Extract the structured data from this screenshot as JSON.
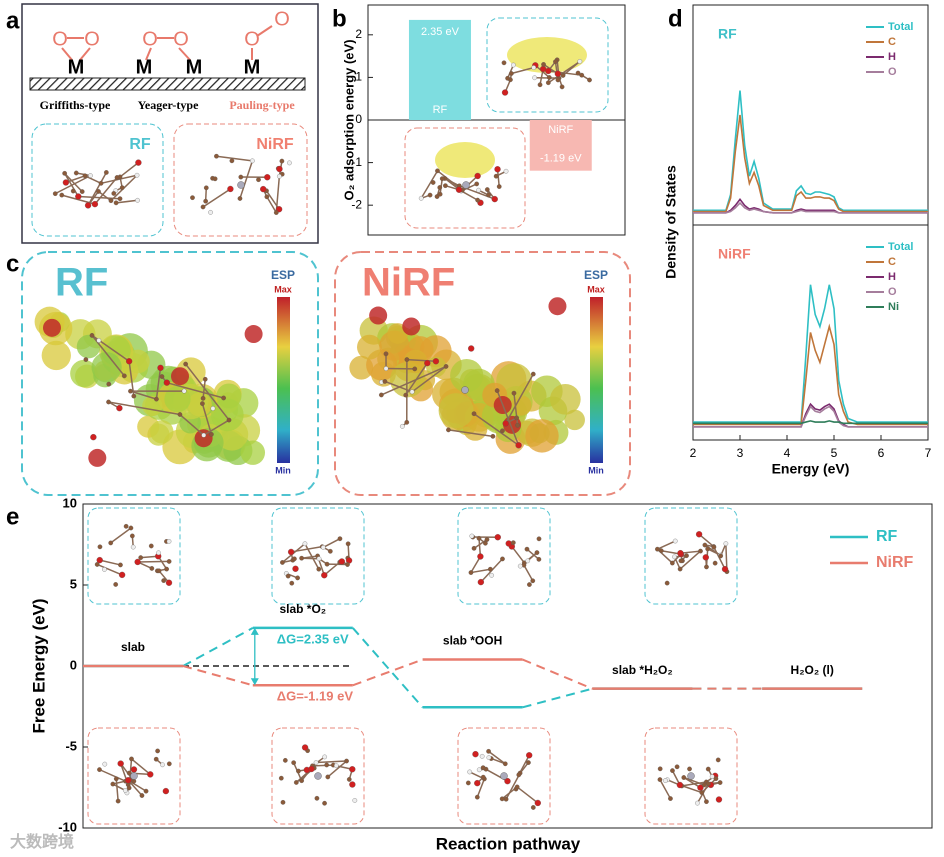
{
  "figure": {
    "panel_labels": [
      "a",
      "b",
      "c",
      "d",
      "e"
    ],
    "watermark": "大数跨境"
  },
  "panel_a": {
    "labels": [
      "Griffiths-type",
      "Yeager-type",
      "Pauling-type"
    ],
    "metal": "M",
    "oxygen": "O",
    "insets": [
      "RF",
      "NiRF"
    ]
  },
  "panel_c": {
    "insets": [
      "RF",
      "NiRF"
    ],
    "colorbar": {
      "title": "ESP",
      "max": "Max",
      "min": "Min"
    }
  },
  "chart_data": [
    {
      "type": "bar",
      "ylabel": "O₂ adsorption energy (eV)",
      "categories": [
        "RF",
        "NiRF"
      ],
      "values": [
        2.35,
        -1.19
      ],
      "value_labels": [
        "2.35 eV",
        "-1.19 eV"
      ],
      "colors": [
        "#7edde0",
        "#f7b8b2"
      ],
      "ylim": [
        -2.7,
        2.7
      ],
      "yticks": [
        -2,
        -1,
        0,
        1,
        2
      ]
    },
    {
      "type": "line",
      "title": "RF",
      "title_color": "#3fc0c8",
      "x": [
        2,
        2.7,
        2.8,
        2.9,
        3.0,
        3.1,
        3.2,
        3.3,
        3.4,
        3.5,
        3.7,
        4.1,
        4.2,
        4.3,
        4.4,
        4.5,
        4.6,
        4.7,
        4.8,
        4.9,
        5.0,
        5.1,
        5.2,
        5.3,
        5.5,
        7
      ],
      "xlim": [
        2,
        7
      ],
      "ylim": [
        -10,
        170
      ],
      "legend": "upper right",
      "series": [
        {
          "name": "Total",
          "color": "#2ebfc4",
          "values": [
            2,
            2,
            15,
            60,
            100,
            55,
            30,
            42,
            28,
            8,
            3,
            3,
            18,
            22,
            16,
            15,
            17,
            17,
            16,
            15,
            13,
            4,
            2,
            2,
            2,
            2
          ]
        },
        {
          "name": "C",
          "color": "#c0763a",
          "values": [
            1,
            1,
            12,
            50,
            80,
            45,
            24,
            33,
            22,
            6,
            2,
            2,
            14,
            17,
            12,
            12,
            13,
            13,
            12,
            12,
            10,
            3,
            1,
            1,
            1,
            1
          ]
        },
        {
          "name": "H",
          "color": "#7b2a6e",
          "values": [
            0,
            0,
            2,
            6,
            11,
            6,
            3,
            4,
            3,
            1,
            0,
            0,
            2,
            3,
            2,
            2,
            2,
            2,
            2,
            2,
            2,
            0,
            0,
            0,
            0,
            0
          ]
        },
        {
          "name": "O",
          "color": "#a57d9c",
          "values": [
            0,
            0,
            1,
            4,
            8,
            4,
            2,
            3,
            2,
            1,
            0,
            0,
            1,
            2,
            1,
            1,
            1,
            1,
            1,
            1,
            1,
            0,
            0,
            0,
            0,
            0
          ]
        }
      ]
    },
    {
      "type": "line",
      "title": "NiRF",
      "title_color": "#ef7f72",
      "xlabel": "Energy (eV)",
      "ylabel": "Density of States",
      "x": [
        2,
        2.7,
        2.8,
        2.9,
        3.0,
        3.1,
        3.2,
        3.3,
        3.4,
        3.5,
        3.7,
        4.1,
        4.2,
        4.3,
        4.4,
        4.5,
        4.6,
        4.7,
        4.8,
        4.9,
        5.0,
        5.1,
        5.2,
        5.3,
        5.5,
        7
      ],
      "xlim": [
        2,
        7
      ],
      "xticks": [
        2,
        3,
        4,
        5,
        6,
        7
      ],
      "ylim": [
        -10,
        170
      ],
      "legend": "upper right",
      "series": [
        {
          "name": "Total",
          "color": "#2ebfc4",
          "values": [
            5,
            5,
            5,
            5,
            5,
            5,
            5,
            5,
            5,
            5,
            5,
            5,
            5,
            5,
            60,
            120,
            95,
            85,
            100,
            120,
            100,
            40,
            20,
            8,
            5,
            5
          ]
        },
        {
          "name": "C",
          "color": "#c0763a",
          "values": [
            3,
            3,
            3,
            3,
            3,
            3,
            3,
            3,
            3,
            3,
            3,
            3,
            3,
            3,
            40,
            80,
            65,
            55,
            70,
            85,
            70,
            28,
            14,
            5,
            3,
            3
          ]
        },
        {
          "name": "H",
          "color": "#7b2a6e",
          "values": [
            1,
            1,
            1,
            1,
            1,
            1,
            1,
            1,
            1,
            1,
            1,
            1,
            1,
            1,
            12,
            20,
            16,
            15,
            18,
            20,
            16,
            6,
            3,
            1,
            1,
            1
          ]
        },
        {
          "name": "O",
          "color": "#a57d9c",
          "values": [
            1,
            1,
            1,
            1,
            1,
            1,
            1,
            1,
            1,
            1,
            1,
            1,
            1,
            1,
            10,
            18,
            14,
            13,
            16,
            18,
            14,
            5,
            2,
            1,
            1,
            1
          ]
        },
        {
          "name": "Ni",
          "color": "#2f7d5a",
          "values": [
            4,
            4,
            4,
            4,
            4,
            4,
            4,
            4,
            4,
            4,
            4,
            4,
            4,
            4,
            5,
            6,
            5,
            5,
            5,
            6,
            5,
            5,
            4,
            4,
            4,
            4
          ]
        }
      ]
    },
    {
      "type": "step",
      "xlabel": "Reaction pathway",
      "ylabel": "Free Energy (eV)",
      "categories": [
        "slab",
        "slab *O₂",
        "slab *OOH",
        "slab *H₂O₂",
        "H₂O₂ (l)"
      ],
      "ylim": [
        -10,
        10
      ],
      "yticks": [
        -10,
        -5,
        0,
        5,
        10
      ],
      "legend": "upper right",
      "annotations": [
        "ΔG=2.35 eV",
        "ΔG=-1.19 eV"
      ],
      "series": [
        {
          "name": "RF",
          "color": "#2ebfc4",
          "values": [
            0,
            2.35,
            -2.55,
            -1.4,
            -1.4
          ]
        },
        {
          "name": "NiRF",
          "color": "#e87c6e",
          "values": [
            0,
            -1.19,
            0.4,
            -1.4,
            -1.4
          ]
        }
      ]
    }
  ]
}
